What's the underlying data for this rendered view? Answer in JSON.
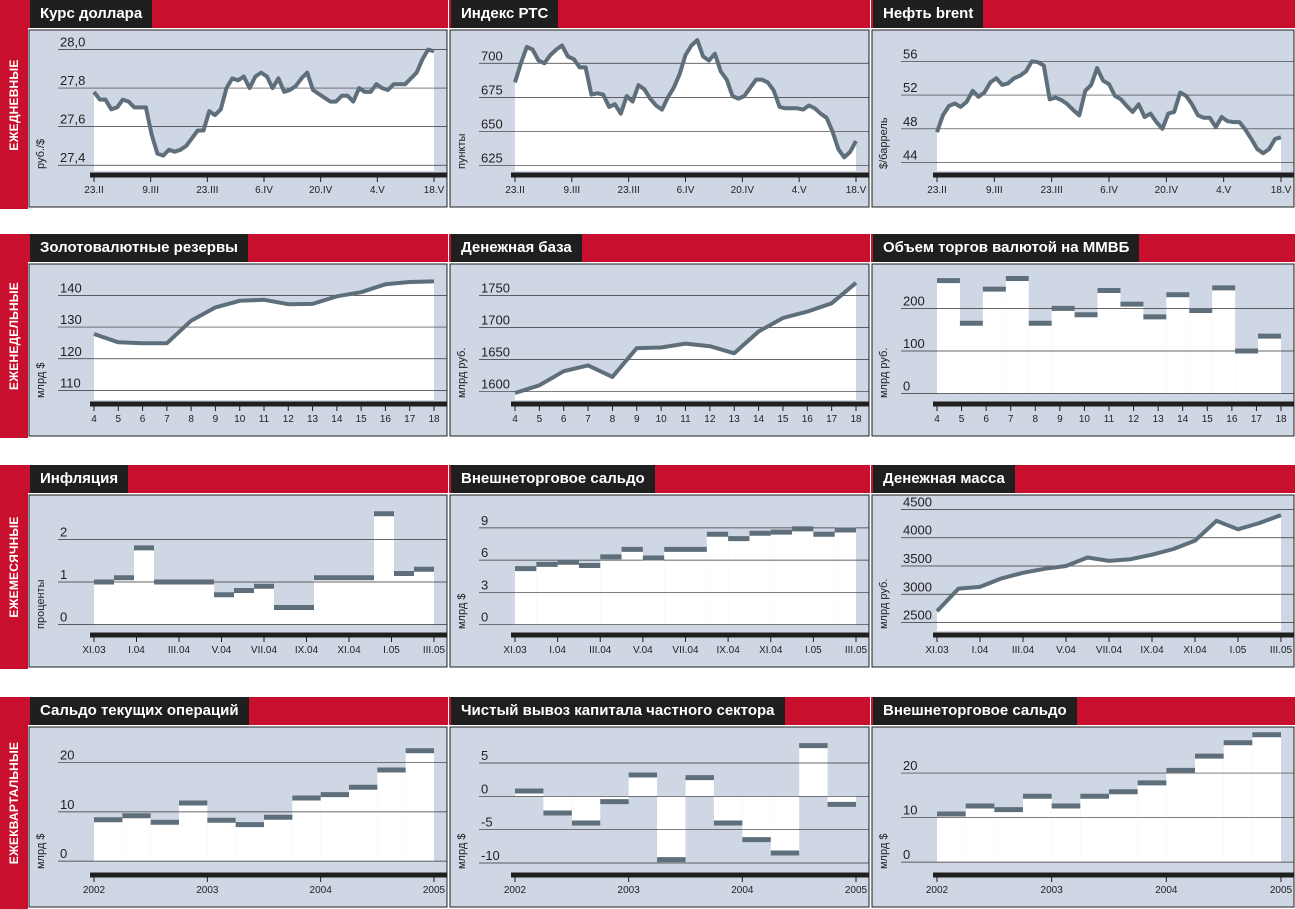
{
  "colors": {
    "accent": "#c8102e",
    "plot_bg": "#cfd6e4",
    "line": "#5e6f7b",
    "grid": "#333333",
    "dark": "#1f1f1f"
  },
  "row_labels": [
    "ЕЖЕДНЕВНЫЕ",
    "ЕЖЕНЕДЕЛЬНЫЕ",
    "ЕЖЕМЕСЯЧНЫЕ",
    "ЕЖЕКВАРТАЛЬНЫЕ"
  ],
  "chart_data": [
    {
      "id": "usd",
      "title": "Курс доллара",
      "type": "line",
      "unit": "руб./$",
      "yticks": [
        "28,0",
        "27,8",
        "27,6",
        "27,4"
      ],
      "ylim": [
        27.37,
        28.07
      ],
      "ytick_values": [
        28.0,
        27.8,
        27.6,
        27.4
      ],
      "xticks": [
        "23.II",
        "9.III",
        "23.III",
        "6.IV",
        "20.IV",
        "4.V",
        "18.V"
      ],
      "values": [
        27.78,
        27.74,
        27.74,
        27.69,
        27.7,
        27.74,
        27.73,
        27.7,
        27.7,
        27.7,
        27.56,
        27.46,
        27.45,
        27.48,
        27.47,
        27.48,
        27.5,
        27.54,
        27.58,
        27.58,
        27.68,
        27.66,
        27.69,
        27.8,
        27.85,
        27.84,
        27.86,
        27.8,
        27.86,
        27.88,
        27.86,
        27.8,
        27.85,
        27.78,
        27.79,
        27.81,
        27.85,
        27.88,
        27.79,
        27.77,
        27.75,
        27.73,
        27.73,
        27.76,
        27.76,
        27.73,
        27.8,
        27.78,
        27.78,
        27.82,
        27.8,
        27.79,
        27.82,
        27.82,
        27.82,
        27.85,
        27.88,
        27.95,
        28.0,
        27.99
      ]
    },
    {
      "id": "rts",
      "title": "Индекс РТС",
      "type": "line",
      "unit": "пункты",
      "yticks": [
        "700",
        "675",
        "650",
        "625"
      ],
      "ylim": [
        621,
        720
      ],
      "ytick_values": [
        700,
        675,
        650,
        625
      ],
      "xticks": [
        "23.II",
        "9.III",
        "23.III",
        "6.IV",
        "20.IV",
        "4.V",
        "18.V"
      ],
      "values": [
        686,
        700,
        712,
        710,
        702,
        700,
        706,
        710,
        713,
        705,
        703,
        697,
        697,
        677,
        678,
        677,
        668,
        670,
        663,
        676,
        672,
        684,
        681,
        674,
        669,
        666,
        675,
        682,
        692,
        706,
        713,
        717,
        705,
        702,
        707,
        694,
        688,
        676,
        674,
        676,
        682,
        688,
        688,
        686,
        680,
        668,
        667,
        667,
        667,
        666,
        669,
        667,
        663,
        660,
        650,
        637,
        631,
        635,
        643
      ]
    },
    {
      "id": "brent",
      "title": "Нефть brent",
      "type": "line",
      "unit": "$/баррель",
      "yticks": [
        "56",
        "52",
        "48",
        "44"
      ],
      "ylim": [
        43,
        59
      ],
      "ytick_values": [
        56,
        52,
        48,
        44
      ],
      "xticks": [
        "23.II",
        "9.III",
        "23.III",
        "6.IV",
        "20.IV",
        "4.V",
        "18.V"
      ],
      "values": [
        47.6,
        49.6,
        50.7,
        51.0,
        50.6,
        51.2,
        52.5,
        51.8,
        52.3,
        53.5,
        54.0,
        53.2,
        53.4,
        54.0,
        54.3,
        54.8,
        56.0,
        55.9,
        55.5,
        51.5,
        51.7,
        51.4,
        50.9,
        50.2,
        49.6,
        52.5,
        53.2,
        55.2,
        53.7,
        53.3,
        51.9,
        51.5,
        50.7,
        50.0,
        50.9,
        49.4,
        49.8,
        48.8,
        48.0,
        49.8,
        50.0,
        52.3,
        51.9,
        50.9,
        49.6,
        49.3,
        49.3,
        48.2,
        49.4,
        48.9,
        48.8,
        48.8,
        47.9,
        46.8,
        45.6,
        45.1,
        45.6,
        46.8,
        47.0
      ]
    },
    {
      "id": "reserves",
      "title": "Золотовалютные резервы",
      "type": "line",
      "unit": "млрд $",
      "yticks": [
        "140",
        "130",
        "120",
        "110"
      ],
      "ylim": [
        107,
        148
      ],
      "ytick_values": [
        140,
        130,
        120,
        110
      ],
      "xticks": [
        "4",
        "5",
        "6",
        "7",
        "8",
        "9",
        "10",
        "11",
        "12",
        "13",
        "14",
        "15",
        "16",
        "17",
        "18"
      ],
      "values": [
        127.8,
        125.2,
        124.9,
        124.9,
        132.0,
        136.2,
        138.3,
        138.6,
        137.2,
        137.3,
        139.7,
        141.0,
        143.5,
        144.2,
        144.4
      ]
    },
    {
      "id": "base",
      "title": "Денежная база",
      "type": "line",
      "unit": "млрд руб.",
      "yticks": [
        "1750",
        "1700",
        "1650",
        "1600"
      ],
      "ylim": [
        1587,
        1790
      ],
      "ytick_values": [
        1750,
        1700,
        1650,
        1600
      ],
      "xticks": [
        "4",
        "5",
        "6",
        "7",
        "8",
        "9",
        "10",
        "11",
        "12",
        "13",
        "14",
        "15",
        "16",
        "17",
        "18"
      ],
      "values": [
        1598,
        1610,
        1632,
        1641,
        1623,
        1668,
        1669,
        1675,
        1671,
        1660,
        1694,
        1715,
        1725,
        1738,
        1770
      ]
    },
    {
      "id": "fx",
      "title": "Объем торгов валютой на ММВБ",
      "type": "step",
      "unit": "млрд руб.",
      "yticks": [
        "200",
        "100",
        "0"
      ],
      "ylim": [
        -15,
        290
      ],
      "ytick_values": [
        200,
        100,
        0
      ],
      "xticks": [
        "4",
        "5",
        "6",
        "7",
        "8",
        "9",
        "10",
        "11",
        "12",
        "13",
        "14",
        "15",
        "16",
        "17",
        "18"
      ],
      "values": [
        265,
        165,
        245,
        270,
        165,
        200,
        185,
        242,
        210,
        180,
        232,
        195,
        248,
        100,
        135
      ]
    },
    {
      "id": "inflation",
      "title": "Инфляция",
      "type": "step",
      "unit": "проценты",
      "yticks": [
        "2",
        "1",
        "0"
      ],
      "ylim": [
        -0.15,
        2.9
      ],
      "ytick_values": [
        2,
        1,
        0
      ],
      "xticks": [
        "XI.03",
        "I.04",
        "III.04",
        "V.04",
        "VII.04",
        "IX.04",
        "XI.04",
        "I.05",
        "III.05"
      ],
      "values": [
        1.0,
        1.1,
        1.8,
        1.0,
        1.0,
        1.0,
        0.7,
        0.8,
        0.9,
        0.4,
        0.4,
        1.1,
        1.1,
        1.1,
        2.6,
        1.2,
        1.3
      ]
    },
    {
      "id": "trade_m",
      "title": "Внешнеторговое сальдо",
      "type": "step",
      "unit": "млрд $",
      "yticks": [
        "9",
        "6",
        "3",
        "0"
      ],
      "ylim": [
        -0.6,
        11.5
      ],
      "ytick_values": [
        9,
        6,
        3,
        0
      ],
      "xticks": [
        "XI.03",
        "I.04",
        "III.04",
        "V.04",
        "VII.04",
        "IX.04",
        "XI.04",
        "I.05",
        "III.05"
      ],
      "values": [
        5.2,
        5.6,
        5.8,
        5.5,
        6.3,
        7.0,
        6.2,
        7.0,
        7.0,
        8.4,
        8.0,
        8.5,
        8.6,
        8.9,
        8.4,
        8.8
      ]
    },
    {
      "id": "money",
      "title": "Денежная масса",
      "type": "line",
      "unit": "млрд руб.",
      "yticks": [
        "4500",
        "4000",
        "3500",
        "3000",
        "2500"
      ],
      "ylim": [
        2350,
        4650
      ],
      "ytick_values": [
        4500,
        4000,
        3500,
        3000,
        2500
      ],
      "xticks": [
        "XI.03",
        "I.04",
        "III.04",
        "V.04",
        "VII.04",
        "IX.04",
        "XI.04",
        "I.05",
        "III.05"
      ],
      "values": [
        2700,
        3100,
        3130,
        3280,
        3380,
        3450,
        3500,
        3650,
        3590,
        3620,
        3700,
        3800,
        3950,
        4300,
        4150,
        4260,
        4400
      ]
    },
    {
      "id": "current",
      "title": "Сальдо текущих операций",
      "type": "step",
      "unit": "млрд $",
      "yticks": [
        "20",
        "10",
        "0"
      ],
      "ylim": [
        -2,
        26
      ],
      "ytick_values": [
        20,
        10,
        0
      ],
      "xticks": [
        "2002",
        "2003",
        "2004",
        "2005"
      ],
      "values": [
        8.4,
        9.2,
        7.9,
        11.8,
        8.3,
        7.4,
        8.9,
        12.8,
        13.5,
        15.0,
        18.5,
        22.4
      ]
    },
    {
      "id": "capital",
      "title": "Чистый вывоз капитала частного сектора",
      "type": "step",
      "unit": "млрд $",
      "yticks": [
        "5",
        "0",
        "-5",
        "-10"
      ],
      "ylim": [
        -11.2,
        9.5
      ],
      "ytick_values": [
        5,
        0,
        -5,
        -10
      ],
      "xticks": [
        "2002",
        "2003",
        "2004",
        "2005"
      ],
      "values": [
        0.8,
        -2.5,
        -4.0,
        -0.8,
        3.2,
        -9.5,
        2.8,
        -4.0,
        -6.5,
        -8.5,
        7.6,
        -1.2
      ]
    },
    {
      "id": "trade_q",
      "title": "Внешнеторговое сальдо",
      "type": "step",
      "unit": "млрд $",
      "yticks": [
        "20",
        "10",
        "0"
      ],
      "ylim": [
        -2,
        29
      ],
      "ytick_values": [
        20,
        10,
        0
      ],
      "xticks": [
        "2002",
        "2003",
        "2004",
        "2005"
      ],
      "values": [
        10.8,
        12.6,
        11.8,
        14.8,
        12.6,
        14.8,
        15.8,
        17.8,
        20.6,
        23.8,
        26.8,
        28.6
      ]
    }
  ]
}
